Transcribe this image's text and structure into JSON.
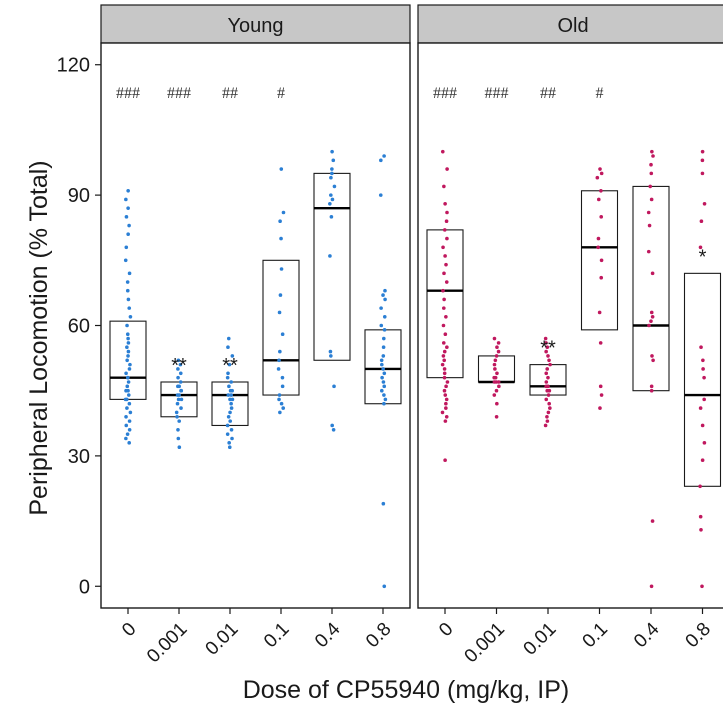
{
  "chart_data": {
    "type": "box",
    "xlabel": "Dose of CP55940 (mg/kg, IP)",
    "ylabel": "Peripheral Locomotion (% Total)",
    "ylim": [
      -5,
      125
    ],
    "yticks": [
      0,
      30,
      60,
      90,
      120
    ],
    "categories": [
      "0",
      "0.001",
      "0.01",
      "0.1",
      "0.4",
      "0.8"
    ],
    "panels": [
      {
        "name": "Young",
        "color": "#2b7fd4",
        "boxes": [
          {
            "q1": 43,
            "median": 48,
            "q3": 61,
            "points": [
              33,
              34,
              35,
              36,
              37,
              38,
              39,
              40,
              41,
              42,
              43,
              43,
              44,
              45,
              45,
              46,
              47,
              48,
              48,
              49,
              50,
              51,
              52,
              53,
              54,
              55,
              56,
              57,
              58,
              60,
              62,
              64,
              66,
              68,
              70,
              72,
              75,
              78,
              81,
              83,
              85,
              87,
              89,
              91
            ]
          },
          {
            "q1": 39,
            "median": 44,
            "q3": 47,
            "points": [
              32,
              34,
              36,
              38,
              39,
              40,
              41,
              42,
              43,
              43,
              44,
              44,
              45,
              45,
              46,
              46,
              47,
              48,
              49,
              50,
              51,
              52
            ]
          },
          {
            "q1": 37,
            "median": 44,
            "q3": 47,
            "points": [
              32,
              33,
              34,
              35,
              36,
              37,
              38,
              39,
              40,
              41,
              42,
              43,
              43,
              44,
              44,
              45,
              45,
              46,
              47,
              48,
              49,
              51,
              53,
              55,
              57
            ]
          },
          {
            "q1": 44,
            "median": 52,
            "q3": 75,
            "points": [
              40,
              41,
              42,
              43,
              44,
              46,
              48,
              50,
              52,
              54,
              58,
              63,
              67,
              73,
              80,
              84,
              86,
              96
            ]
          },
          {
            "q1": 52,
            "median": 87,
            "q3": 95,
            "points": [
              36,
              37,
              46,
              53,
              54,
              76,
              85,
              88,
              89,
              90,
              92,
              94,
              95,
              96,
              98,
              100
            ]
          },
          {
            "q1": 42,
            "median": 50,
            "q3": 59,
            "points": [
              0,
              19,
              42,
              43,
              44,
              45,
              46,
              47,
              48,
              49,
              50,
              51,
              52,
              53,
              55,
              57,
              59,
              60,
              62,
              64,
              66,
              67,
              68,
              90,
              98,
              99
            ]
          }
        ],
        "annotations_top": [
          "###",
          "###",
          "##",
          "#",
          "",
          ""
        ],
        "annotations_star": [
          "",
          "**",
          "**",
          "",
          "",
          ""
        ]
      },
      {
        "name": "Old",
        "color": "#c0185e",
        "boxes": [
          {
            "q1": 48,
            "median": 68,
            "q3": 82,
            "points": [
              29,
              38,
              39,
              40,
              41,
              42,
              43,
              44,
              45,
              46,
              47,
              48,
              49,
              50,
              51,
              52,
              53,
              54,
              55,
              56,
              58,
              60,
              62,
              64,
              66,
              68,
              70,
              72,
              74,
              76,
              78,
              80,
              82,
              84,
              86,
              88,
              92,
              96,
              100
            ]
          },
          {
            "q1": 47,
            "median": 47,
            "q3": 53,
            "points": [
              39,
              42,
              44,
              45,
              46,
              47,
              47,
              47,
              48,
              48,
              49,
              50,
              51,
              52,
              53,
              54,
              55,
              56,
              57
            ]
          },
          {
            "q1": 44,
            "median": 46,
            "q3": 51,
            "points": [
              37,
              38,
              39,
              40,
              41,
              42,
              43,
              44,
              45,
              45,
              46,
              46,
              47,
              48,
              49,
              50,
              51,
              52,
              53,
              54,
              55,
              56,
              57
            ]
          },
          {
            "q1": 59,
            "median": 78,
            "q3": 91,
            "points": [
              41,
              44,
              46,
              56,
              63,
              71,
              75,
              78,
              80,
              85,
              89,
              91,
              94,
              95,
              96
            ]
          },
          {
            "q1": 45,
            "median": 60,
            "q3": 92,
            "points": [
              0,
              15,
              45,
              46,
              52,
              53,
              60,
              61,
              62,
              63,
              72,
              77,
              83,
              86,
              89,
              92,
              95,
              97,
              99,
              100
            ]
          },
          {
            "q1": 23,
            "median": 44,
            "q3": 72,
            "points": [
              0,
              13,
              16,
              23,
              29,
              33,
              37,
              41,
              43,
              48,
              50,
              52,
              55,
              78,
              84,
              88,
              95,
              98,
              100
            ]
          }
        ],
        "annotations_top": [
          "###",
          "###",
          "##",
          "#",
          "",
          ""
        ],
        "annotations_star": [
          "",
          "",
          "**",
          "",
          "",
          "*"
        ]
      }
    ]
  }
}
